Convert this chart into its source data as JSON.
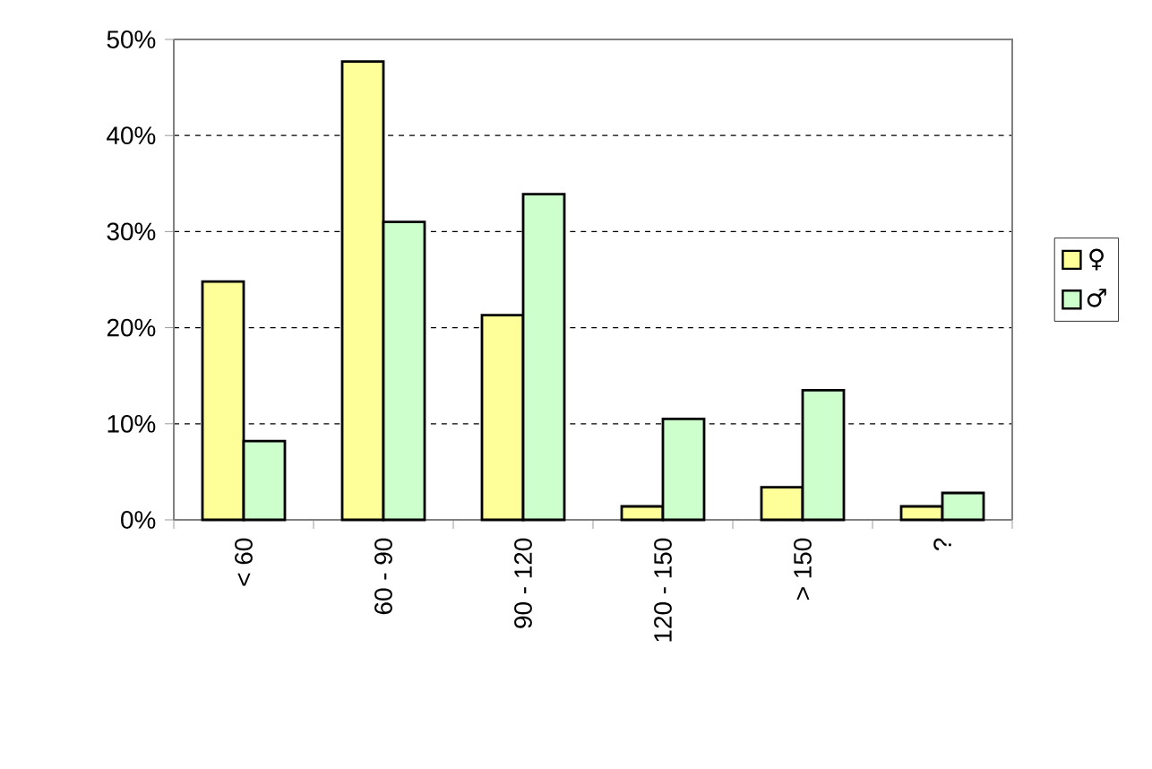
{
  "chart_data": {
    "type": "bar",
    "categories": [
      "< 60",
      "60 - 90",
      "90 - 120",
      "120 - 150",
      "> 150",
      "?"
    ],
    "series": [
      {
        "name": "♀",
        "color": "#ffff99",
        "values": [
          24.8,
          47.7,
          21.3,
          1.4,
          3.4,
          1.4
        ]
      },
      {
        "name": "♂",
        "color": "#ccffcc",
        "values": [
          8.2,
          31.0,
          33.9,
          10.5,
          13.5,
          2.8
        ]
      }
    ],
    "ylim": [
      0,
      50
    ],
    "yticks": [
      {
        "value": 0,
        "label": "0%"
      },
      {
        "value": 10,
        "label": "10%"
      },
      {
        "value": 20,
        "label": "20%"
      },
      {
        "value": 30,
        "label": "30%"
      },
      {
        "value": 40,
        "label": "40%"
      },
      {
        "value": 50,
        "label": "50%"
      }
    ],
    "grid": "y",
    "legend": "right"
  }
}
